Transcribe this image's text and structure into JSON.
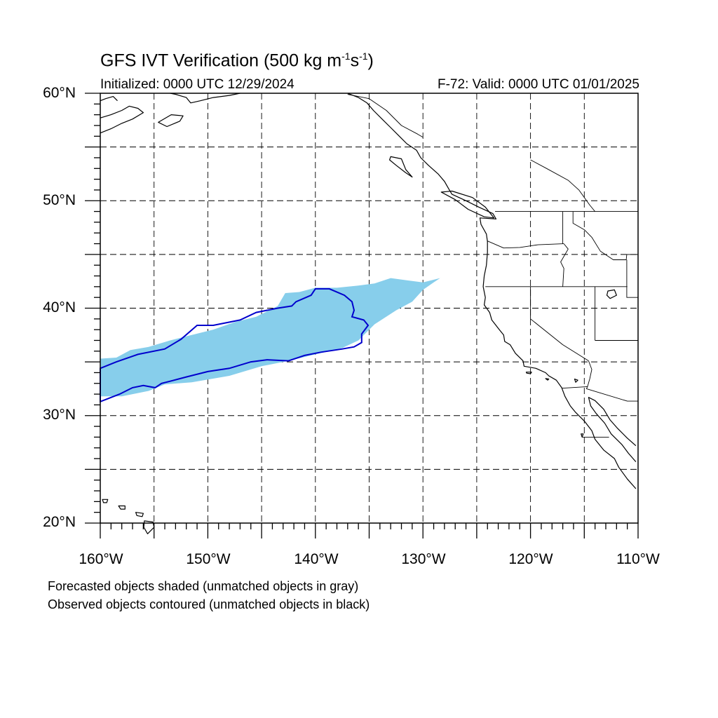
{
  "title": {
    "main": "GFS IVT Verification (500 kg m",
    "sup1": "-1",
    "mid": "s",
    "sup2": "-1",
    "end": ")"
  },
  "subtitle_left": "Initialized: 0000 UTC 12/29/2024",
  "subtitle_right": "F-72: Valid: 0000 UTC 01/01/2025",
  "lat_labels": [
    "60°N",
    "50°N",
    "40°N",
    "30°N",
    "20°N"
  ],
  "lon_labels": [
    "160°W",
    "150°W",
    "140°W",
    "130°W",
    "120°W",
    "110°W"
  ],
  "notes": [
    "Forecasted objects shaded (unmatched objects in gray)",
    "Observed objects contoured (unmatched objects in black)"
  ],
  "colors": {
    "forecast_fill": "#87ceeb",
    "observed_contour": "#0000cd",
    "coastline": "#000000",
    "grid": "#000000"
  },
  "map_extent": {
    "lon": [
      -160,
      -110
    ],
    "lat": [
      20,
      60
    ]
  },
  "chart_data": {
    "type": "map",
    "projection": "cylindrical equidistant",
    "grid": true,
    "grid_style": "dashed",
    "forecast_object": {
      "label": "Forecasted object (shaded)",
      "polygon_lonlat": [
        [
          -160,
          35.3
        ],
        [
          -158.5,
          35.4
        ],
        [
          -157.2,
          36.1
        ],
        [
          -155.5,
          36.4
        ],
        [
          -153.5,
          37.0
        ],
        [
          -151.5,
          37.5
        ],
        [
          -149.5,
          38.0
        ],
        [
          -147.5,
          38.7
        ],
        [
          -145.5,
          39.2
        ],
        [
          -143.5,
          40.2
        ],
        [
          -142.8,
          41.4
        ],
        [
          -141.5,
          41.5
        ],
        [
          -140.0,
          41.9
        ],
        [
          -138.0,
          41.9
        ],
        [
          -136.0,
          42.1
        ],
        [
          -134.5,
          42.3
        ],
        [
          -133.0,
          42.8
        ],
        [
          -131.5,
          42.6
        ],
        [
          -130.0,
          42.4
        ],
        [
          -128.4,
          42.8
        ],
        [
          -129.0,
          42.4
        ],
        [
          -130.0,
          41.7
        ],
        [
          -131.0,
          40.6
        ],
        [
          -132.5,
          39.8
        ],
        [
          -134.5,
          38.5
        ],
        [
          -136.0,
          37.0
        ],
        [
          -137.5,
          36.3
        ],
        [
          -140.0,
          35.7
        ],
        [
          -142.5,
          35.1
        ],
        [
          -145.0,
          34.6
        ],
        [
          -148.0,
          33.7
        ],
        [
          -151.5,
          33.1
        ],
        [
          -154.0,
          32.9
        ],
        [
          -155.5,
          32.3
        ],
        [
          -158.0,
          31.8
        ],
        [
          -160,
          31.8
        ]
      ]
    },
    "observed_object": {
      "label": "Observed object (contoured)",
      "polygon_lonlat": [
        [
          -160,
          34.4
        ],
        [
          -158.5,
          35.0
        ],
        [
          -156.5,
          35.7
        ],
        [
          -154.0,
          36.2
        ],
        [
          -152.5,
          37.1
        ],
        [
          -151.0,
          38.4
        ],
        [
          -149.5,
          38.4
        ],
        [
          -147.0,
          38.9
        ],
        [
          -145.5,
          39.6
        ],
        [
          -143.5,
          40.0
        ],
        [
          -142.2,
          40.2
        ],
        [
          -141.8,
          40.6
        ],
        [
          -140.4,
          41.2
        ],
        [
          -140.0,
          41.8
        ],
        [
          -138.7,
          41.8
        ],
        [
          -137.3,
          41.2
        ],
        [
          -136.6,
          40.6
        ],
        [
          -136.4,
          39.8
        ],
        [
          -136.6,
          39.2
        ],
        [
          -135.5,
          38.9
        ],
        [
          -135.1,
          38.4
        ],
        [
          -135.7,
          37.6
        ],
        [
          -135.7,
          36.8
        ],
        [
          -136.4,
          36.4
        ],
        [
          -137.5,
          36.2
        ],
        [
          -139.5,
          35.9
        ],
        [
          -141.0,
          35.6
        ],
        [
          -142.5,
          35.1
        ],
        [
          -144.5,
          35.2
        ],
        [
          -146.0,
          35.0
        ],
        [
          -148.0,
          34.4
        ],
        [
          -150.0,
          34.1
        ],
        [
          -152.0,
          33.6
        ],
        [
          -153.5,
          33.2
        ],
        [
          -154.3,
          33.0
        ],
        [
          -154.9,
          32.6
        ],
        [
          -156.0,
          32.8
        ],
        [
          -157.0,
          32.6
        ],
        [
          -158.2,
          32.0
        ],
        [
          -159.5,
          31.5
        ],
        [
          -160,
          31.3
        ]
      ]
    }
  }
}
